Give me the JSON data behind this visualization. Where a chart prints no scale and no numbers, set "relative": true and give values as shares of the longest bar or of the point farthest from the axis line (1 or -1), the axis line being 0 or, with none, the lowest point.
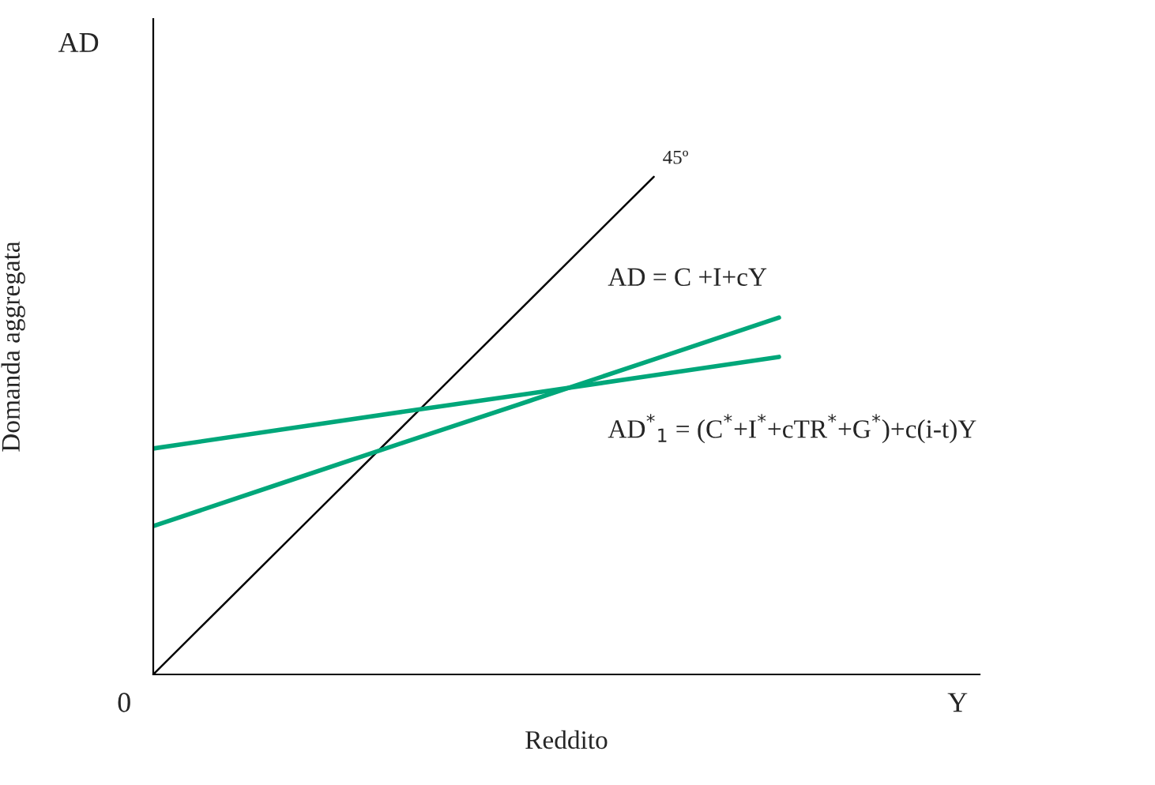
{
  "chart_data": {
    "type": "line",
    "relative": true,
    "xlabel": "Reddito",
    "ylabel": "Domanda aggregata",
    "annotations": [
      "AD",
      "0",
      "Y"
    ],
    "categories": [
      null,
      null,
      null,
      null,
      null,
      null
    ],
    "series": [
      {
        "name": "45º",
        "color": "#000000",
        "values": [
          0,
          0.25,
          0.5,
          0.75,
          1,
          null
        ]
      },
      {
        "name": "AD = C +I+cY",
        "color": "#00a77a",
        "values": [
          0.298,
          0.382,
          0.466,
          0.549,
          0.633,
          0.717
        ]
      },
      {
        "name": "AD$^{*}$$_{1}$ = (C$^{*}$+I$^{*}$+cTR$^{*}$+G$^{*}$)+c(i-t)Y",
        "color": "#00a77a",
        "values": [
          0.454,
          0.491,
          0.528,
          0.564,
          0.601,
          0.638
        ]
      }
    ],
    "legend": false
  }
}
